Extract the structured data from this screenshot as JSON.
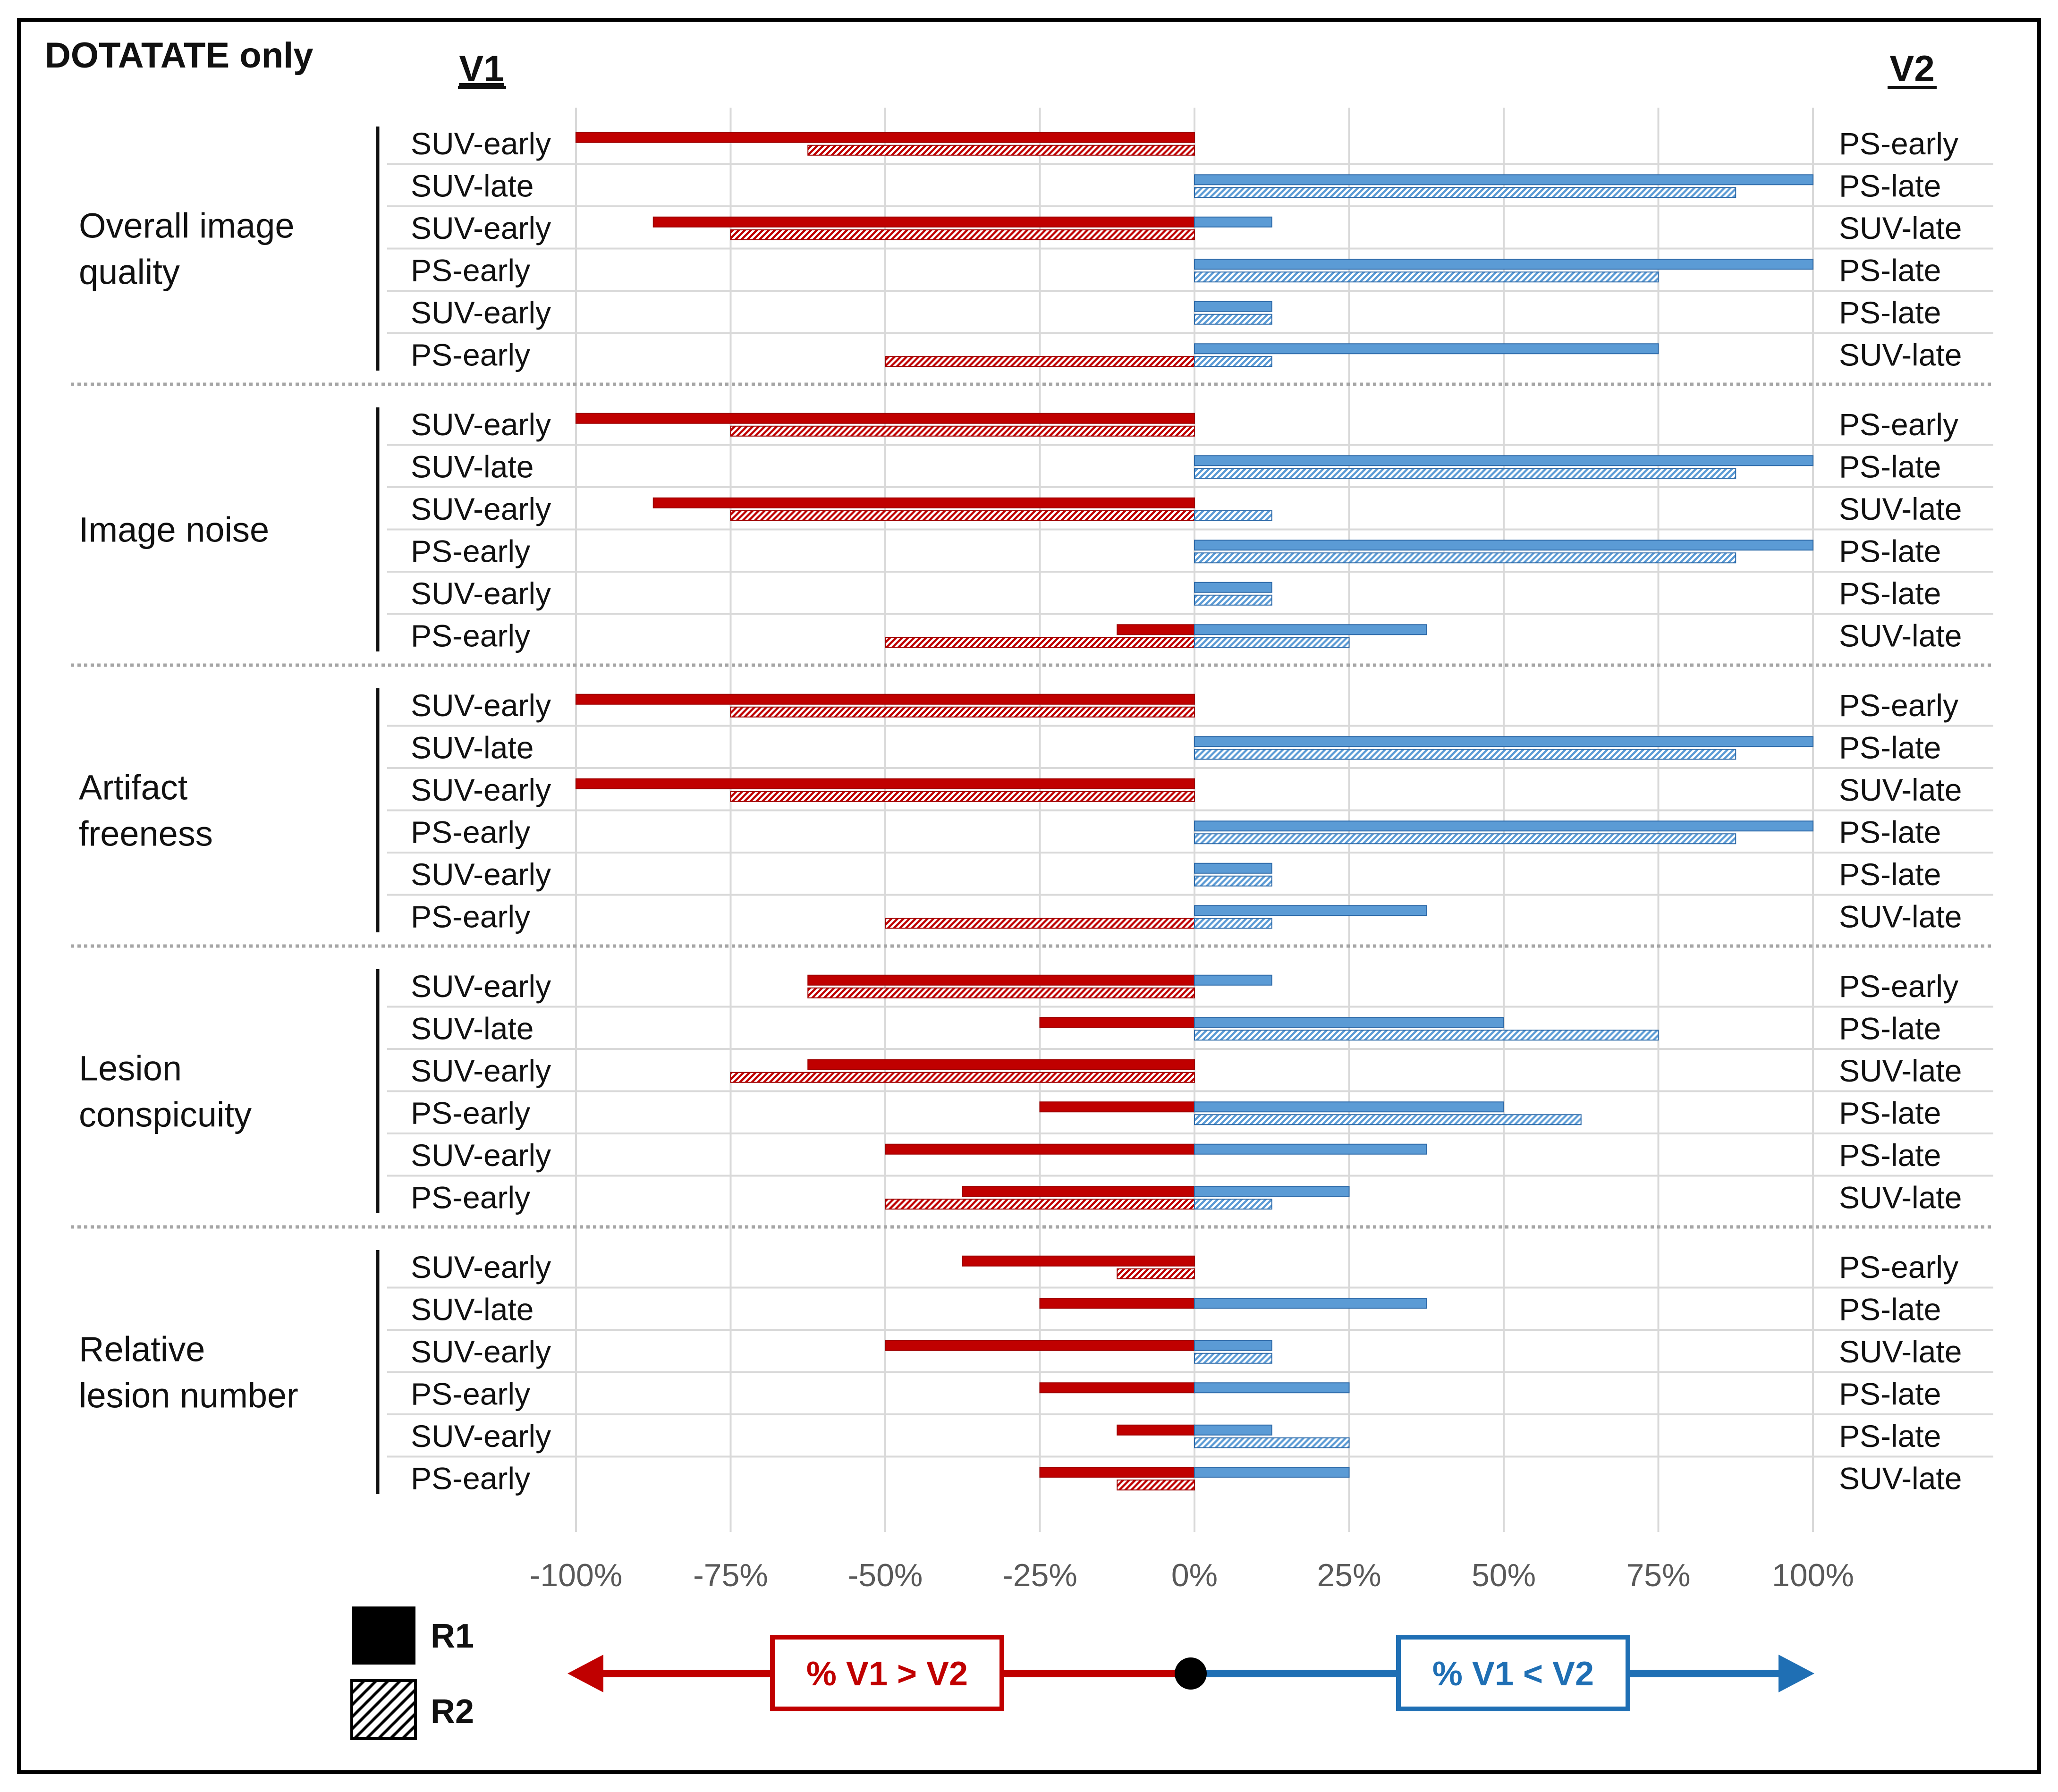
{
  "colors": {
    "v1_greater": "#c00000",
    "v1_less": "#5b9bd5",
    "v1_less_stroke": "#2e6aa8",
    "grid": "#d9d9d9",
    "axis_text": "#595959",
    "arrow_red": "#c00000",
    "arrow_blue": "#1f6fb4"
  },
  "chart_data": {
    "type": "bar",
    "orientation": "horizontal",
    "title": "DOTATATE only",
    "left_header": "V1",
    "right_header": "V2",
    "xlim": [
      -100,
      100
    ],
    "x_ticks": [
      -100,
      -75,
      -50,
      -25,
      0,
      25,
      50,
      75,
      100
    ],
    "x_tick_labels": [
      "-100%",
      "-75%",
      "-50%",
      "-25%",
      "0%",
      "25%",
      "50%",
      "75%",
      "100%"
    ],
    "grid": true,
    "legend": {
      "placement": "bottom-left",
      "entries": [
        {
          "label": "R1",
          "pattern": "solid"
        },
        {
          "label": "R2",
          "pattern": "hatched"
        }
      ]
    },
    "annotations": {
      "negative_label": "% V1 > V2",
      "positive_label": "% V1 < V2"
    },
    "comparisons": [
      {
        "v1": "SUV-early",
        "v2": "PS-early"
      },
      {
        "v1": "SUV-late",
        "v2": "PS-late"
      },
      {
        "v1": "SUV-early",
        "v2": "SUV-late"
      },
      {
        "v1": "PS-early",
        "v2": "PS-late"
      },
      {
        "v1": "SUV-early",
        "v2": "PS-late"
      },
      {
        "v1": "PS-early",
        "v2": "SUV-late"
      }
    ],
    "groups": [
      {
        "name_lines": [
          "Overall image",
          "quality"
        ],
        "rows": [
          {
            "R1": {
              "neg": -100,
              "pos": 0
            },
            "R2": {
              "neg": -62.5,
              "pos": 0
            }
          },
          {
            "R1": {
              "neg": 0,
              "pos": 100
            },
            "R2": {
              "neg": 0,
              "pos": 87.5
            }
          },
          {
            "R1": {
              "neg": -87.5,
              "pos": 12.5
            },
            "R2": {
              "neg": -75,
              "pos": 0
            }
          },
          {
            "R1": {
              "neg": 0,
              "pos": 100
            },
            "R2": {
              "neg": 0,
              "pos": 75
            }
          },
          {
            "R1": {
              "neg": 0,
              "pos": 12.5
            },
            "R2": {
              "neg": 0,
              "pos": 12.5
            }
          },
          {
            "R1": {
              "neg": 0,
              "pos": 75
            },
            "R2": {
              "neg": -50,
              "pos": 12.5
            }
          }
        ]
      },
      {
        "name_lines": [
          "Image noise"
        ],
        "rows": [
          {
            "R1": {
              "neg": -100,
              "pos": 0
            },
            "R2": {
              "neg": -75,
              "pos": 0
            }
          },
          {
            "R1": {
              "neg": 0,
              "pos": 100
            },
            "R2": {
              "neg": 0,
              "pos": 87.5
            }
          },
          {
            "R1": {
              "neg": -87.5,
              "pos": 0
            },
            "R2": {
              "neg": -75,
              "pos": 12.5
            }
          },
          {
            "R1": {
              "neg": 0,
              "pos": 100
            },
            "R2": {
              "neg": 0,
              "pos": 87.5
            }
          },
          {
            "R1": {
              "neg": 0,
              "pos": 12.5
            },
            "R2": {
              "neg": 0,
              "pos": 12.5
            }
          },
          {
            "R1": {
              "neg": -12.5,
              "pos": 37.5
            },
            "R2": {
              "neg": -50,
              "pos": 25
            }
          }
        ]
      },
      {
        "name_lines": [
          "Artifact",
          "freeness"
        ],
        "rows": [
          {
            "R1": {
              "neg": -100,
              "pos": 0
            },
            "R2": {
              "neg": -75,
              "pos": 0
            }
          },
          {
            "R1": {
              "neg": 0,
              "pos": 100
            },
            "R2": {
              "neg": 0,
              "pos": 87.5
            }
          },
          {
            "R1": {
              "neg": -100,
              "pos": 0
            },
            "R2": {
              "neg": -75,
              "pos": 0
            }
          },
          {
            "R1": {
              "neg": 0,
              "pos": 100
            },
            "R2": {
              "neg": 0,
              "pos": 87.5
            }
          },
          {
            "R1": {
              "neg": 0,
              "pos": 12.5
            },
            "R2": {
              "neg": 0,
              "pos": 12.5
            }
          },
          {
            "R1": {
              "neg": 0,
              "pos": 37.5
            },
            "R2": {
              "neg": -50,
              "pos": 12.5
            }
          }
        ]
      },
      {
        "name_lines": [
          "Lesion",
          "conspicuity"
        ],
        "rows": [
          {
            "R1": {
              "neg": -62.5,
              "pos": 12.5
            },
            "R2": {
              "neg": -62.5,
              "pos": 0
            }
          },
          {
            "R1": {
              "neg": -25,
              "pos": 50
            },
            "R2": {
              "neg": 0,
              "pos": 75
            }
          },
          {
            "R1": {
              "neg": -62.5,
              "pos": 0
            },
            "R2": {
              "neg": -75,
              "pos": 0
            }
          },
          {
            "R1": {
              "neg": -25,
              "pos": 50
            },
            "R2": {
              "neg": 0,
              "pos": 62.5
            }
          },
          {
            "R1": {
              "neg": -50,
              "pos": 37.5
            },
            "R2": {
              "neg": 0,
              "pos": 0
            }
          },
          {
            "R1": {
              "neg": -37.5,
              "pos": 25
            },
            "R2": {
              "neg": -50,
              "pos": 12.5
            }
          }
        ]
      },
      {
        "name_lines": [
          "Relative",
          "lesion number"
        ],
        "rows": [
          {
            "R1": {
              "neg": -37.5,
              "pos": 0
            },
            "R2": {
              "neg": -12.5,
              "pos": 0
            }
          },
          {
            "R1": {
              "neg": -25,
              "pos": 37.5
            },
            "R2": {
              "neg": 0,
              "pos": 0
            }
          },
          {
            "R1": {
              "neg": -50,
              "pos": 12.5
            },
            "R2": {
              "neg": 0,
              "pos": 12.5
            }
          },
          {
            "R1": {
              "neg": -25,
              "pos": 25
            },
            "R2": {
              "neg": 0,
              "pos": 0
            }
          },
          {
            "R1": {
              "neg": -12.5,
              "pos": 12.5
            },
            "R2": {
              "neg": 0,
              "pos": 25
            }
          },
          {
            "R1": {
              "neg": -25,
              "pos": 25
            },
            "R2": {
              "neg": -12.5,
              "pos": 0
            }
          }
        ]
      }
    ]
  }
}
